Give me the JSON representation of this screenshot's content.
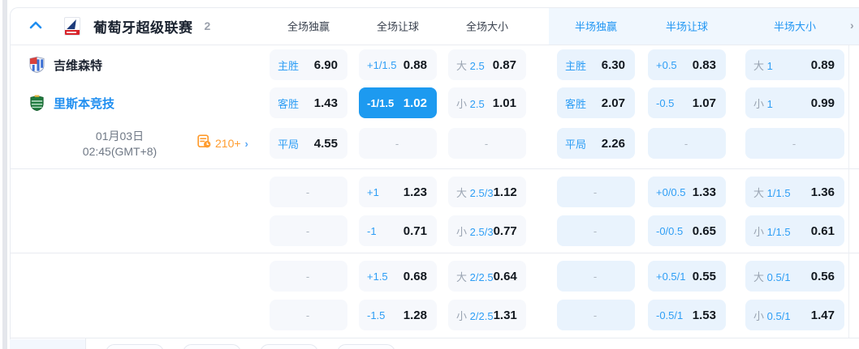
{
  "header": {
    "league_name": "葡萄牙超级联赛",
    "match_count": "2",
    "scroll_right_glyph": "›",
    "columns": [
      {
        "label": "全场独赢",
        "scope": "full"
      },
      {
        "label": "全场让球",
        "scope": "full"
      },
      {
        "label": "全场大小",
        "scope": "full"
      },
      {
        "label": "半场独赢",
        "scope": "half"
      },
      {
        "label": "半场让球",
        "scope": "half"
      },
      {
        "label": "半场大小",
        "scope": "half"
      }
    ]
  },
  "match": {
    "home_team": "吉维森特",
    "away_team": "里斯本竞技",
    "date": "01月03日",
    "time": "02:45(GMT+8)",
    "more_markets_label": "210+",
    "more_markets_chevron": "›"
  },
  "odds": {
    "rows": [
      {
        "cells": [
          {
            "type": "outcome",
            "label": "主胜",
            "value": "6.90"
          },
          {
            "type": "line",
            "label": "+1/1.5",
            "value": "0.88"
          },
          {
            "type": "ou",
            "side": "大",
            "line": "2.5",
            "value": "0.87"
          },
          {
            "type": "outcome",
            "label": "主胜",
            "value": "6.30"
          },
          {
            "type": "line",
            "label": "+0.5",
            "value": "0.83"
          },
          {
            "type": "ou",
            "side": "大",
            "line": "1",
            "value": "0.89"
          }
        ]
      },
      {
        "cells": [
          {
            "type": "outcome",
            "label": "客胜",
            "value": "1.43"
          },
          {
            "type": "line",
            "label": "-1/1.5",
            "value": "1.02",
            "selected": true
          },
          {
            "type": "ou",
            "side": "小",
            "line": "2.5",
            "value": "1.01"
          },
          {
            "type": "outcome",
            "label": "客胜",
            "value": "2.07"
          },
          {
            "type": "line",
            "label": "-0.5",
            "value": "1.07"
          },
          {
            "type": "ou",
            "side": "小",
            "line": "1",
            "value": "0.99"
          }
        ]
      },
      {
        "cells": [
          {
            "type": "outcome",
            "label": "平局",
            "value": "4.55"
          },
          {
            "type": "empty",
            "placeholder": "-"
          },
          {
            "type": "empty",
            "placeholder": "-"
          },
          {
            "type": "outcome",
            "label": "平局",
            "value": "2.26"
          },
          {
            "type": "empty",
            "placeholder": "-"
          },
          {
            "type": "empty",
            "placeholder": "-"
          }
        ]
      },
      {
        "cells": [
          {
            "type": "empty",
            "placeholder": "-"
          },
          {
            "type": "line",
            "label": "+1",
            "value": "1.23"
          },
          {
            "type": "ou",
            "side": "大",
            "line": "2.5/3",
            "value": "1.12"
          },
          {
            "type": "empty",
            "placeholder": "-"
          },
          {
            "type": "line",
            "label": "+0/0.5",
            "value": "1.33"
          },
          {
            "type": "ou",
            "side": "大",
            "line": "1/1.5",
            "value": "1.36"
          }
        ]
      },
      {
        "cells": [
          {
            "type": "empty",
            "placeholder": "-"
          },
          {
            "type": "line",
            "label": "-1",
            "value": "0.71"
          },
          {
            "type": "ou",
            "side": "小",
            "line": "2.5/3",
            "value": "0.77"
          },
          {
            "type": "empty",
            "placeholder": "-"
          },
          {
            "type": "line",
            "label": "-0/0.5",
            "value": "0.65"
          },
          {
            "type": "ou",
            "side": "小",
            "line": "1/1.5",
            "value": "0.61"
          }
        ]
      },
      {
        "cells": [
          {
            "type": "empty",
            "placeholder": "-"
          },
          {
            "type": "line",
            "label": "+1.5",
            "value": "0.68"
          },
          {
            "type": "ou",
            "side": "大",
            "line": "2/2.5",
            "value": "0.64"
          },
          {
            "type": "empty",
            "placeholder": "-"
          },
          {
            "type": "line",
            "label": "+0.5/1",
            "value": "0.55"
          },
          {
            "type": "ou",
            "side": "大",
            "line": "0.5/1",
            "value": "0.56"
          }
        ]
      },
      {
        "cells": [
          {
            "type": "empty",
            "placeholder": "-"
          },
          {
            "type": "line",
            "label": "-1.5",
            "value": "1.28"
          },
          {
            "type": "ou",
            "side": "小",
            "line": "2/2.5",
            "value": "1.31"
          },
          {
            "type": "empty",
            "placeholder": "-"
          },
          {
            "type": "line",
            "label": "-0.5/1",
            "value": "1.53"
          },
          {
            "type": "ou",
            "side": "小",
            "line": "0.5/1",
            "value": "1.47"
          }
        ]
      }
    ]
  },
  "colors": {
    "accent_blue": "#2196f3",
    "selected_cell_bg": "#1d9af0",
    "half_cell_bg": "#e9f3fd",
    "full_cell_bg": "#f6f8fc",
    "orange": "#ff9c2e"
  }
}
